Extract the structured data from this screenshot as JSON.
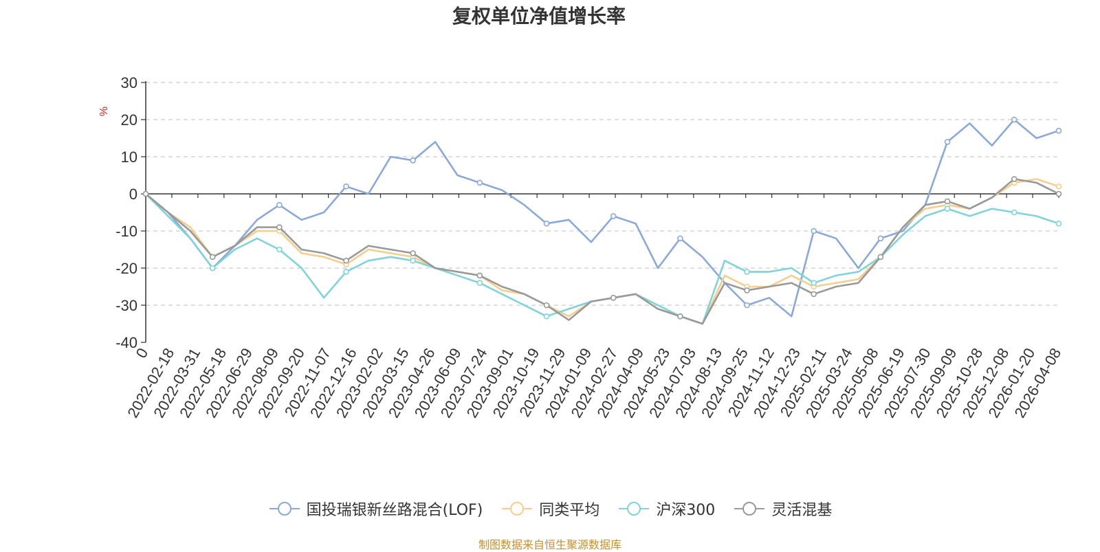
{
  "chart_data": {
    "type": "line",
    "title": "复权单位净值增长率",
    "ylabel": "%",
    "ylim": [
      -40,
      30
    ],
    "yticks": [
      30,
      20,
      10,
      0,
      -10,
      -20,
      -30,
      -40
    ],
    "x_tick_labels": [
      "0",
      "2022-02-18",
      "2022-03-31",
      "2022-05-18",
      "2022-06-29",
      "2022-08-09",
      "2022-09-20",
      "2022-11-07",
      "2022-12-16",
      "2023-02-02",
      "2023-03-15",
      "2023-04-26",
      "2023-06-09",
      "2023-07-24",
      "2023-09-01",
      "2023-10-19",
      "2023-11-29",
      "2024-01-09",
      "2024-02-27",
      "2024-04-09",
      "2024-05-23",
      "2024-07-03",
      "2024-08-13",
      "2024-09-25",
      "2024-11-12",
      "2024-12-23",
      "2025-02-11",
      "2025-03-24",
      "2025-05-08",
      "2025-06-19",
      "2025-07-30",
      "2025-09-09",
      "2025-10-28",
      "2025-12-08",
      "2026-01-20",
      "2026-04-08"
    ],
    "grid": "horizontal-dashed",
    "legend_position": "bottom",
    "series": [
      {
        "name": "国投瑞银新丝路混合(LOF)",
        "color": "#8aa9d8",
        "values": [
          0,
          -5,
          -12,
          -20,
          -14,
          -7,
          -3,
          -7,
          -5,
          2,
          0,
          10,
          9,
          14,
          5,
          3,
          1,
          -3,
          -8,
          -7,
          -13,
          -6,
          -8,
          -20,
          -12,
          -17,
          -24,
          -30,
          -28,
          -33,
          -10,
          -12,
          -20,
          -12,
          -10,
          -3,
          14,
          19,
          13,
          20,
          15,
          17
        ]
      },
      {
        "name": "同类平均",
        "color": "#f5cd8c",
        "values": [
          0,
          -5,
          -9,
          -17,
          -14,
          -10,
          -10,
          -16,
          -17,
          -19,
          -15,
          -16,
          -17,
          -20,
          -21,
          -22,
          -26,
          -27,
          -30,
          -33,
          -29,
          -28,
          -27,
          -31,
          -33,
          -35,
          -22,
          -25,
          -25,
          -22,
          -25,
          -24,
          -23,
          -17,
          -9,
          -4,
          -3,
          -4,
          -1,
          3,
          4,
          2
        ]
      },
      {
        "name": "沪深300",
        "color": "#7fd3d9",
        "values": [
          0,
          -6,
          -12,
          -20,
          -15,
          -12,
          -15,
          -20,
          -28,
          -21,
          -18,
          -17,
          -18,
          -20,
          -22,
          -24,
          -27,
          -30,
          -33,
          -31,
          -29,
          -28,
          -27,
          -30,
          -33,
          -35,
          -18,
          -21,
          -21,
          -20,
          -24,
          -22,
          -21,
          -17,
          -11,
          -6,
          -4,
          -6,
          -4,
          -5,
          -6,
          -8
        ]
      },
      {
        "name": "灵活混基",
        "color": "#999999",
        "values": [
          0,
          -5,
          -10,
          -17,
          -14,
          -9,
          -9,
          -15,
          -16,
          -18,
          -14,
          -15,
          -16,
          -20,
          -21,
          -22,
          -25,
          -27,
          -30,
          -34,
          -29,
          -28,
          -27,
          -31,
          -33,
          -35,
          -24,
          -26,
          -25,
          -24,
          -27,
          -25,
          -24,
          -17,
          -9,
          -3,
          -2,
          -4,
          -1,
          4,
          3,
          0
        ]
      }
    ]
  },
  "legend": {
    "items": [
      "国投瑞银新丝路混合(LOF)",
      "同类平均",
      "沪深300",
      "灵活混基"
    ]
  },
  "footer": {
    "source": "制图数据来自恒生聚源数据库"
  }
}
